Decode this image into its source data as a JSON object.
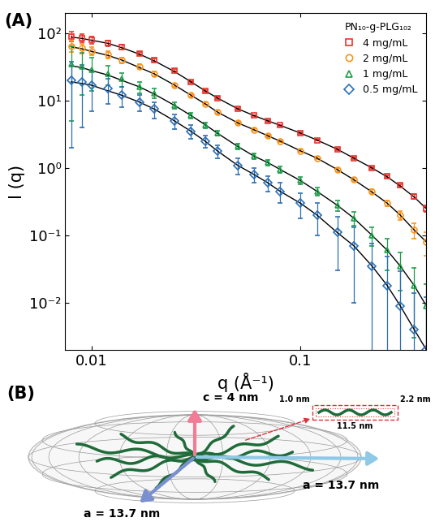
{
  "chart_data": {
    "type": "scatter",
    "annotations": [
      "(A)"
    ],
    "x_label": "q (Å⁻¹)",
    "y_label": "I (q)",
    "legend_title": "PN₁₀-g-PLG₁₀₂",
    "legend": "upper right",
    "log": true,
    "xlim": [
      0.0075,
      0.4
    ],
    "ylim": [
      0.002,
      200
    ],
    "xticks": [
      0.01,
      0.1
    ],
    "yticks": [
      {
        "value": 0.01,
        "label": "10⁻²"
      },
      {
        "value": 0.1,
        "label": "10⁻¹"
      },
      {
        "value": 1,
        "label": "10⁰"
      },
      {
        "value": 10,
        "label": "10¹"
      },
      {
        "value": 100,
        "label": "10²"
      }
    ],
    "x": [
      0.008,
      0.009,
      0.01,
      0.012,
      0.014,
      0.017,
      0.02,
      0.025,
      0.03,
      0.035,
      0.04,
      0.05,
      0.06,
      0.07,
      0.08,
      0.1,
      0.12,
      0.15,
      0.18,
      0.22,
      0.26,
      0.3,
      0.35,
      0.4
    ],
    "series": [
      {
        "name": "4 mg/mL",
        "color": "#e8332a",
        "marker": "square",
        "values": [
          90,
          85,
          80,
          72,
          62,
          50,
          40,
          28,
          19,
          14,
          11,
          7.5,
          6,
          5,
          4.3,
          3.3,
          2.6,
          1.9,
          1.4,
          1.0,
          0.75,
          0.55,
          0.38,
          0.25
        ],
        "errors": [
          15,
          12,
          10,
          7,
          5,
          3,
          2,
          1.2,
          0.7,
          0.5,
          0.35,
          0.2,
          0.15,
          0.12,
          0.1,
          0.08,
          0.06,
          0.05,
          0.04,
          0.03,
          0.03,
          0.03,
          0.03,
          0.03
        ],
        "fit": [
          88,
          84,
          79,
          71,
          61,
          49,
          39,
          27,
          19,
          14,
          11,
          7.6,
          6,
          5,
          4.3,
          3.3,
          2.6,
          1.9,
          1.4,
          1.0,
          0.74,
          0.54,
          0.37,
          0.25
        ]
      },
      {
        "name": "2 mg/mL",
        "color": "#f7941d",
        "marker": "circle",
        "values": [
          65,
          60,
          55,
          48,
          40,
          32,
          25,
          17,
          12,
          9,
          6.8,
          4.7,
          3.7,
          3.0,
          2.5,
          1.8,
          1.4,
          0.95,
          0.68,
          0.45,
          0.3,
          0.2,
          0.12,
          0.08
        ],
        "errors": [
          12,
          10,
          8,
          6,
          4,
          2.5,
          1.8,
          1,
          0.6,
          0.4,
          0.3,
          0.2,
          0.15,
          0.12,
          0.1,
          0.08,
          0.06,
          0.05,
          0.04,
          0.03,
          0.03,
          0.03,
          0.03,
          0.03
        ],
        "fit": [
          63,
          59,
          54,
          47,
          40,
          31,
          25,
          17,
          12,
          9,
          6.8,
          4.7,
          3.7,
          3.0,
          2.5,
          1.8,
          1.4,
          0.95,
          0.67,
          0.44,
          0.3,
          0.2,
          0.12,
          0.08
        ]
      },
      {
        "name": "1 mg/mL",
        "color": "#1e9e4a",
        "marker": "triangle",
        "values": [
          35,
          32,
          29,
          25,
          21,
          16,
          13,
          8.5,
          6,
          4.3,
          3.3,
          2.1,
          1.5,
          1.2,
          0.95,
          0.65,
          0.45,
          0.28,
          0.18,
          0.1,
          0.06,
          0.035,
          0.018,
          0.009
        ],
        "errors": [
          30,
          20,
          15,
          8,
          5,
          3,
          2,
          1,
          0.6,
          0.4,
          0.3,
          0.2,
          0.15,
          0.12,
          0.1,
          0.08,
          0.06,
          0.05,
          0.04,
          0.03,
          0.03,
          0.02,
          0.015,
          0.01
        ],
        "fit": [
          33,
          31,
          28,
          24,
          20,
          16,
          12.5,
          8.5,
          6,
          4.4,
          3.3,
          2.1,
          1.5,
          1.2,
          0.95,
          0.65,
          0.45,
          0.28,
          0.18,
          0.1,
          0.06,
          0.035,
          0.018,
          0.009
        ]
      },
      {
        "name": "0.5 mg/mL",
        "color": "#2c6fb5",
        "marker": "diamond",
        "values": [
          20,
          19,
          17,
          15,
          12,
          9.5,
          7.5,
          5,
          3.5,
          2.5,
          1.8,
          1.1,
          0.8,
          0.6,
          0.45,
          0.3,
          0.2,
          0.11,
          0.07,
          0.035,
          0.018,
          0.009,
          0.004,
          0.002
        ],
        "errors": [
          18,
          15,
          10,
          6,
          4,
          2.5,
          2,
          1.2,
          0.8,
          0.5,
          0.4,
          0.3,
          0.2,
          0.15,
          0.15,
          0.12,
          0.1,
          0.08,
          0.06,
          0.04,
          0.03,
          0.02,
          0.01,
          0.01
        ],
        "fit": [
          19,
          18,
          17,
          14,
          12,
          9.5,
          7.5,
          5,
          3.5,
          2.5,
          1.8,
          1.1,
          0.8,
          0.6,
          0.45,
          0.3,
          0.2,
          0.11,
          0.07,
          0.035,
          0.018,
          0.009,
          0.004,
          0.002
        ]
      }
    ]
  },
  "diagram": {
    "panel_label": "(B)",
    "axes": {
      "c": "c = 4 nm",
      "a_right": "a = 13.7 nm",
      "a_front": "a = 13.7 nm"
    },
    "inset": {
      "thickness": "1.0 nm",
      "width": "2.2 nm",
      "length": "11.5 nm"
    }
  }
}
